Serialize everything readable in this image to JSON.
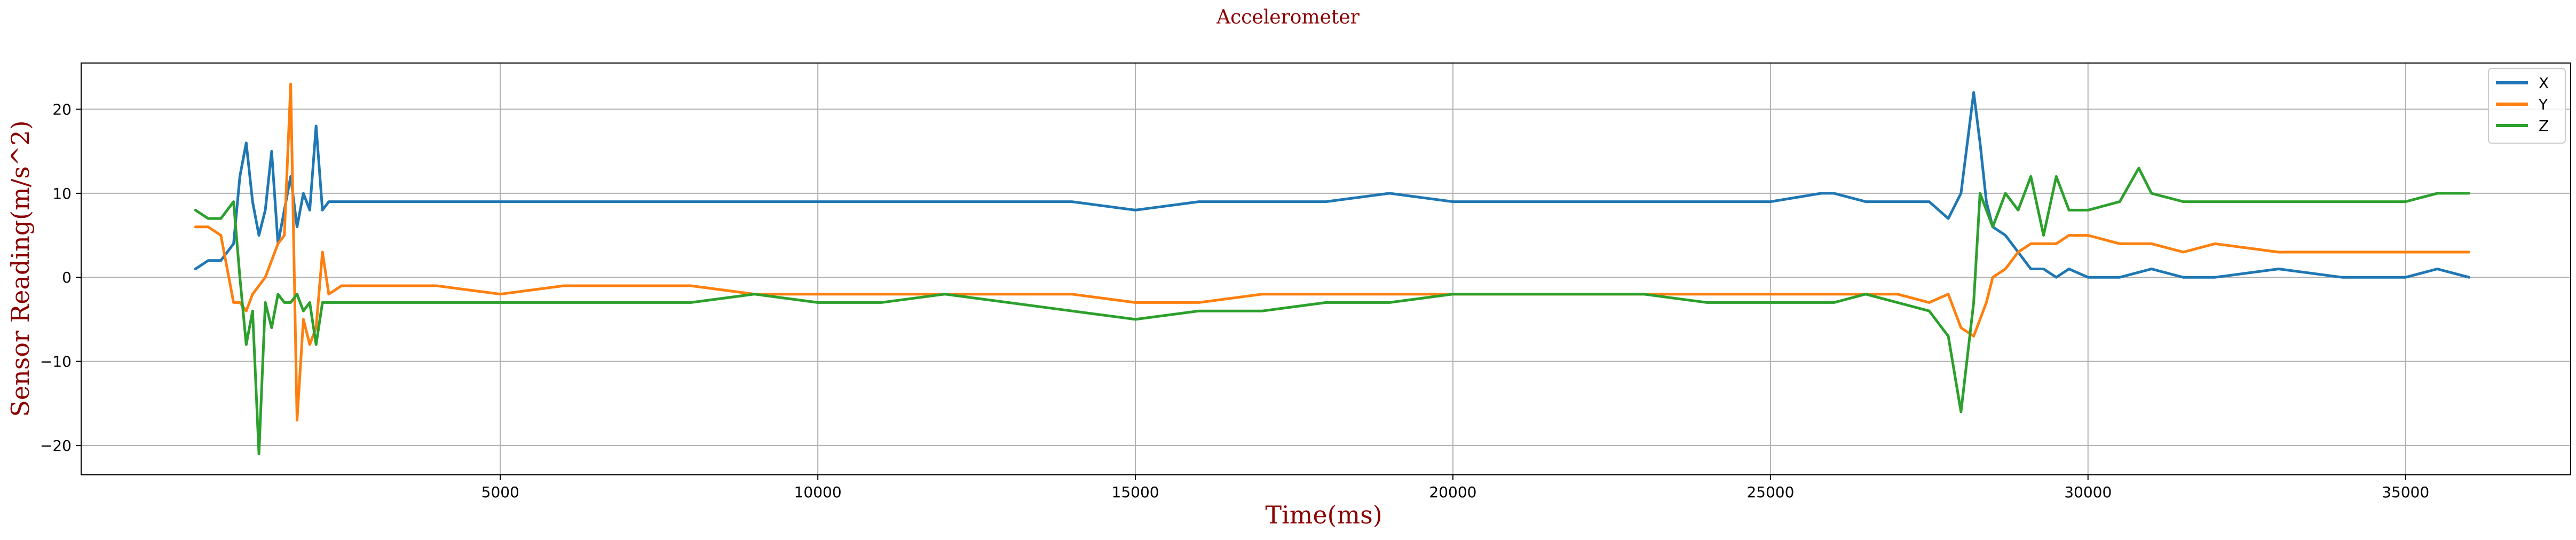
{
  "chart_data": {
    "type": "line",
    "title": "Accelerometer",
    "xlabel": "Time(ms)",
    "ylabel": "Sensor Reading(m/s^2)",
    "xlim": [
      -1600,
      37600
    ],
    "ylim": [
      -23.5,
      25.5
    ],
    "xticks": [
      5000,
      10000,
      15000,
      20000,
      25000,
      30000,
      35000
    ],
    "yticks": [
      -20,
      -10,
      0,
      10,
      20
    ],
    "grid": true,
    "legend_position": "top-right",
    "series": [
      {
        "name": "X",
        "color": "#1f77b4",
        "x": [
          200,
          400,
          600,
          800,
          900,
          1000,
          1100,
          1200,
          1300,
          1400,
          1500,
          1600,
          1700,
          1800,
          1900,
          2000,
          2100,
          2200,
          2300,
          2500,
          3000,
          4000,
          5000,
          6000,
          7000,
          8000,
          9000,
          10000,
          11000,
          12000,
          13000,
          14000,
          15000,
          16000,
          16500,
          17000,
          18000,
          19000,
          20000,
          21000,
          22000,
          23000,
          24000,
          25000,
          25800,
          26000,
          26500,
          27000,
          27500,
          27800,
          28000,
          28200,
          28300,
          28400,
          28500,
          28700,
          28900,
          29100,
          29300,
          29500,
          29700,
          30000,
          30500,
          31000,
          31500,
          32000,
          33000,
          34000,
          35000,
          35500,
          36000
        ],
        "y": [
          1,
          2,
          2,
          4,
          12,
          16,
          9,
          5,
          8,
          15,
          4,
          8,
          12,
          6,
          10,
          8,
          18,
          8,
          9,
          9,
          9,
          9,
          9,
          9,
          9,
          9,
          9,
          9,
          9,
          9,
          9,
          9,
          8,
          9,
          9,
          9,
          9,
          10,
          9,
          9,
          9,
          9,
          9,
          9,
          10,
          10,
          9,
          9,
          9,
          7,
          10,
          22,
          16,
          9,
          6,
          5,
          3,
          1,
          1,
          0,
          1,
          0,
          0,
          1,
          0,
          0,
          1,
          0,
          0,
          1,
          0
        ]
      },
      {
        "name": "Y",
        "color": "#ff7f0e",
        "x": [
          200,
          400,
          600,
          800,
          900,
          1000,
          1100,
          1200,
          1300,
          1400,
          1500,
          1600,
          1700,
          1800,
          1900,
          2000,
          2100,
          2200,
          2300,
          2500,
          3000,
          4000,
          5000,
          6000,
          7000,
          8000,
          9000,
          10000,
          11000,
          12000,
          13000,
          14000,
          15000,
          16000,
          17000,
          18000,
          19000,
          20000,
          21000,
          22000,
          23000,
          24000,
          25000,
          26000,
          26500,
          27000,
          27500,
          27800,
          28000,
          28200,
          28400,
          28500,
          28700,
          28900,
          29100,
          29300,
          29500,
          29700,
          30000,
          30500,
          31000,
          31500,
          32000,
          33000,
          34000,
          35000,
          36000
        ],
        "y": [
          6,
          6,
          5,
          -3,
          -3,
          -4,
          -2,
          -1,
          0,
          2,
          4,
          5,
          23,
          -17,
          -5,
          -8,
          -6,
          3,
          -2,
          -1,
          -1,
          -1,
          -2,
          -1,
          -1,
          -1,
          -2,
          -2,
          -2,
          -2,
          -2,
          -2,
          -3,
          -3,
          -2,
          -2,
          -2,
          -2,
          -2,
          -2,
          -2,
          -2,
          -2,
          -2,
          -2,
          -2,
          -3,
          -2,
          -6,
          -7,
          -3,
          0,
          1,
          3,
          4,
          4,
          4,
          5,
          5,
          4,
          4,
          3,
          4,
          3,
          3,
          3,
          3
        ]
      },
      {
        "name": "Z",
        "color": "#2ca02c",
        "x": [
          200,
          400,
          600,
          800,
          900,
          1000,
          1100,
          1200,
          1300,
          1400,
          1500,
          1600,
          1700,
          1800,
          1900,
          2000,
          2100,
          2200,
          2300,
          2500,
          3000,
          4000,
          5000,
          6000,
          7000,
          8000,
          9000,
          10000,
          11000,
          12000,
          13000,
          14000,
          15000,
          16000,
          17000,
          18000,
          19000,
          20000,
          21000,
          22000,
          23000,
          24000,
          25000,
          26000,
          26500,
          27000,
          27500,
          27800,
          28000,
          28200,
          28300,
          28500,
          28700,
          28900,
          29100,
          29300,
          29500,
          29700,
          30000,
          30500,
          30800,
          31000,
          31500,
          32000,
          33000,
          34000,
          35000,
          35500,
          36000
        ],
        "y": [
          8,
          7,
          7,
          9,
          0,
          -8,
          -4,
          -21,
          -3,
          -6,
          -2,
          -3,
          -3,
          -2,
          -4,
          -3,
          -8,
          -3,
          -3,
          -3,
          -3,
          -3,
          -3,
          -3,
          -3,
          -3,
          -2,
          -3,
          -3,
          -2,
          -3,
          -4,
          -5,
          -4,
          -4,
          -3,
          -3,
          -2,
          -2,
          -2,
          -2,
          -3,
          -3,
          -3,
          -2,
          -3,
          -4,
          -7,
          -16,
          -3,
          10,
          6,
          10,
          8,
          12,
          5,
          12,
          8,
          8,
          9,
          13,
          10,
          9,
          9,
          9,
          9,
          9,
          10,
          10
        ]
      }
    ]
  }
}
